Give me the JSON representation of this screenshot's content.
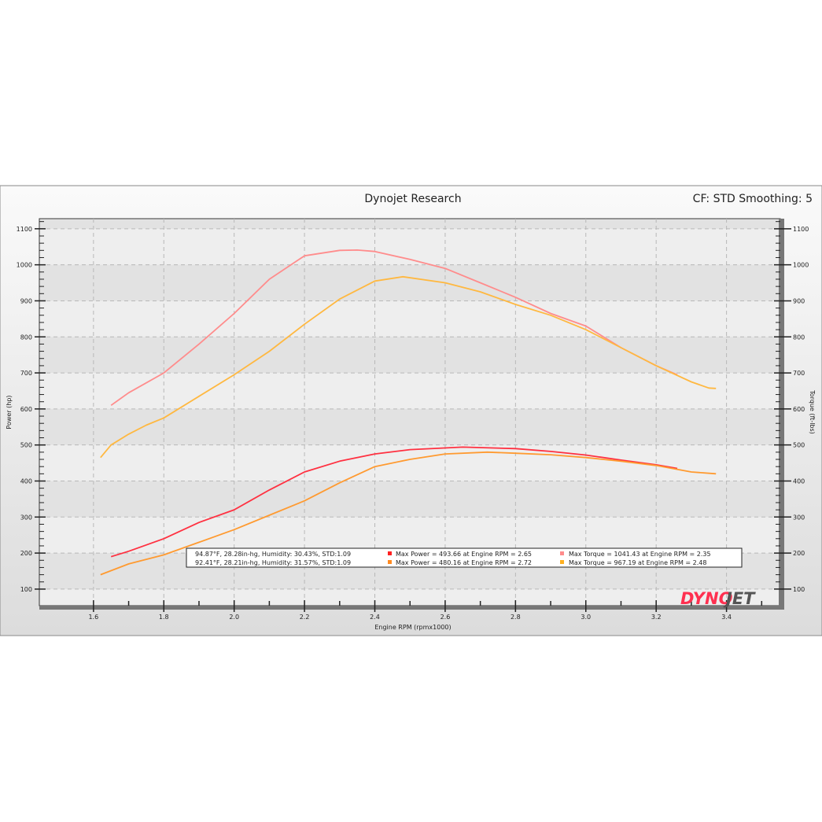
{
  "chart_data": {
    "type": "line",
    "title": "Dynojet Research",
    "subtitle": "CF: STD Smoothing: 5",
    "xlabel": "Engine RPM (rpmx1000)",
    "ylabel": "Power (hp)",
    "y2label": "Torque (ft-lbs)",
    "xlim": [
      1.446,
      3.553
    ],
    "ylim": [
      54,
      1128
    ],
    "xticks": [
      "1.6",
      "1.8",
      "2.0",
      "2.2",
      "2.4",
      "2.6",
      "2.8",
      "3.0",
      "3.2",
      "3.4"
    ],
    "yticks": [
      "100",
      "200",
      "300",
      "400",
      "500",
      "600",
      "700",
      "800",
      "900",
      "1000",
      "1100"
    ],
    "grid": true,
    "legend_placement": "bottom",
    "series": [
      {
        "axis": "power",
        "color": "#ff3040",
        "x": [
          1.65,
          1.7,
          1.8,
          1.9,
          2.0,
          2.1,
          2.2,
          2.3,
          2.4,
          2.5,
          2.65,
          2.8,
          2.9,
          3.0,
          3.1,
          3.2,
          3.26
        ],
        "y": [
          190,
          205,
          240,
          285,
          320,
          375,
          425,
          455,
          475,
          487,
          494,
          490,
          482,
          472,
          458,
          445,
          435
        ]
      },
      {
        "axis": "power",
        "color": "#ff9a30",
        "x": [
          1.62,
          1.7,
          1.8,
          1.9,
          2.0,
          2.1,
          2.2,
          2.3,
          2.4,
          2.5,
          2.6,
          2.72,
          2.8,
          2.9,
          3.0,
          3.1,
          3.2,
          3.3,
          3.37
        ],
        "y": [
          140,
          170,
          195,
          230,
          265,
          305,
          345,
          395,
          440,
          460,
          475,
          480,
          477,
          473,
          465,
          455,
          443,
          425,
          420
        ]
      },
      {
        "axis": "torque",
        "color": "#ff8c8c",
        "x": [
          1.65,
          1.7,
          1.8,
          1.9,
          2.0,
          2.1,
          2.2,
          2.3,
          2.35,
          2.4,
          2.5,
          2.6,
          2.7,
          2.8,
          2.9,
          3.0,
          3.1,
          3.2,
          3.26
        ],
        "y": [
          610,
          645,
          700,
          780,
          865,
          960,
          1025,
          1040,
          1041,
          1037,
          1015,
          990,
          950,
          910,
          865,
          830,
          770,
          720,
          695
        ]
      },
      {
        "axis": "torque",
        "color": "#ffb840",
        "x": [
          1.62,
          1.65,
          1.7,
          1.75,
          1.8,
          1.9,
          2.0,
          2.1,
          2.2,
          2.3,
          2.4,
          2.48,
          2.6,
          2.7,
          2.8,
          2.9,
          3.0,
          3.1,
          3.2,
          3.3,
          3.35,
          3.37
        ],
        "y": [
          465,
          500,
          530,
          555,
          575,
          635,
          695,
          760,
          835,
          905,
          955,
          967,
          950,
          925,
          890,
          860,
          820,
          770,
          720,
          675,
          658,
          657
        ]
      }
    ],
    "legend": [
      {
        "conditions": "94.87°F, 28.28in-hg, Humidity: 30.43%, STD:1.09",
        "power": "Max Power = 493.66 at Engine RPM = 2.65",
        "power_color": "#ff2020",
        "torque": "Max Torque = 1041.43 at Engine RPM = 2.35",
        "torque_color": "#ff8c8c"
      },
      {
        "conditions": "92.41°F, 28.21in-hg, Humidity: 31.57%, STD:1.09",
        "power": "Max Power = 480.16 at Engine RPM = 2.72",
        "power_color": "#ff8a20",
        "torque": "Max Torque = 967.19 at Engine RPM = 2.48",
        "torque_color": "#ffb020"
      }
    ],
    "logo": "DYNOJET"
  }
}
